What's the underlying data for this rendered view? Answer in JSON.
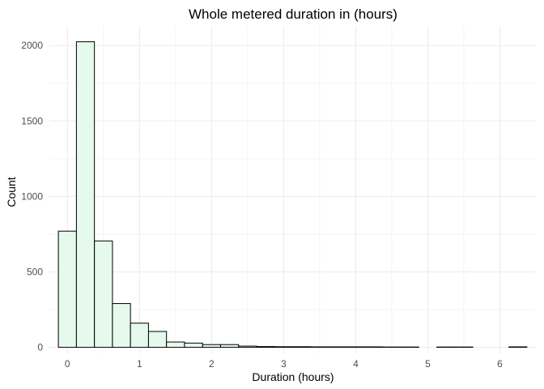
{
  "chart_data": {
    "type": "bar",
    "subtype": "histogram",
    "title": "Whole metered duration in (hours)",
    "xlabel": "Duration (hours)",
    "ylabel": "Count",
    "xlim": [
      -0.25,
      6.5
    ],
    "ylim": [
      -40,
      2130
    ],
    "x_ticks": [
      0,
      1,
      2,
      3,
      4,
      5,
      6
    ],
    "y_ticks": [
      0,
      500,
      1000,
      1500,
      2000
    ],
    "grid": true,
    "bar_fill": "#e5f9ec",
    "bar_border": "#000000",
    "bins": [
      {
        "start": -0.125,
        "end": 0.125,
        "count": 770
      },
      {
        "start": 0.125,
        "end": 0.375,
        "count": 2025
      },
      {
        "start": 0.375,
        "end": 0.625,
        "count": 705
      },
      {
        "start": 0.625,
        "end": 0.875,
        "count": 290
      },
      {
        "start": 0.875,
        "end": 1.125,
        "count": 160
      },
      {
        "start": 1.125,
        "end": 1.375,
        "count": 105
      },
      {
        "start": 1.375,
        "end": 1.625,
        "count": 35
      },
      {
        "start": 1.625,
        "end": 1.875,
        "count": 28
      },
      {
        "start": 1.875,
        "end": 2.125,
        "count": 18
      },
      {
        "start": 2.125,
        "end": 2.375,
        "count": 18
      },
      {
        "start": 2.375,
        "end": 2.625,
        "count": 8
      },
      {
        "start": 2.625,
        "end": 2.875,
        "count": 5
      },
      {
        "start": 2.875,
        "end": 3.125,
        "count": 4
      },
      {
        "start": 3.125,
        "end": 3.375,
        "count": 4
      },
      {
        "start": 3.375,
        "end": 3.625,
        "count": 3
      },
      {
        "start": 3.625,
        "end": 3.875,
        "count": 3
      },
      {
        "start": 3.875,
        "end": 4.125,
        "count": 3
      },
      {
        "start": 4.125,
        "end": 4.375,
        "count": 3
      },
      {
        "start": 4.375,
        "end": 4.625,
        "count": 2
      },
      {
        "start": 4.625,
        "end": 4.875,
        "count": 2
      },
      {
        "start": 4.875,
        "end": 5.125,
        "count": 0
      },
      {
        "start": 5.125,
        "end": 5.375,
        "count": 2
      },
      {
        "start": 5.375,
        "end": 5.625,
        "count": 2
      },
      {
        "start": 5.625,
        "end": 5.875,
        "count": 0
      },
      {
        "start": 5.875,
        "end": 6.125,
        "count": 0
      },
      {
        "start": 6.125,
        "end": 6.375,
        "count": 3
      }
    ]
  }
}
